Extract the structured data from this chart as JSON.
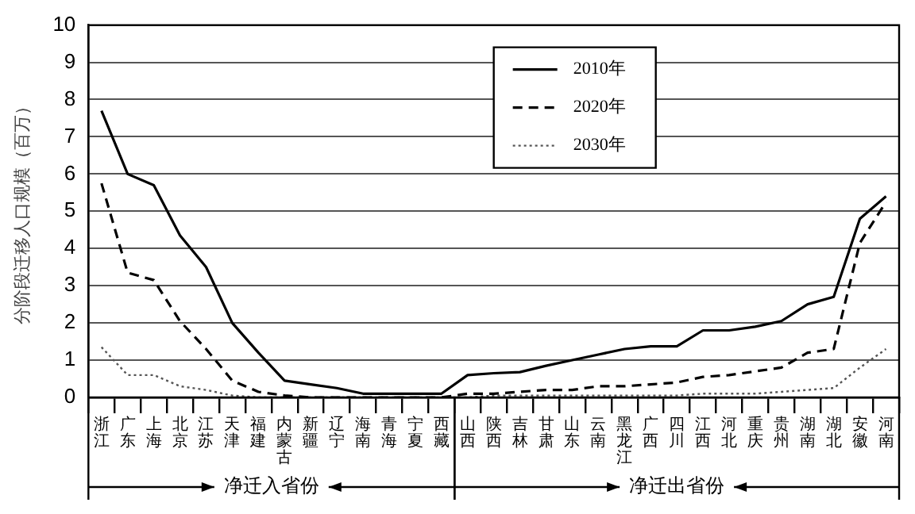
{
  "chart_data": {
    "type": "line",
    "ylabel": "分阶段迁移人口规模（百万）",
    "categories": [
      "浙江",
      "广东",
      "上海",
      "北京",
      "江苏",
      "天津",
      "福建",
      "内蒙古",
      "新疆",
      "辽宁",
      "海南",
      "青海",
      "宁夏",
      "西藏",
      "山西",
      "陕西",
      "吉林",
      "甘肃",
      "山东",
      "云南",
      "黑龙江",
      "广西",
      "四川",
      "江西",
      "河北",
      "重庆",
      "贵州",
      "湖南",
      "湖北",
      "安徽",
      "河南"
    ],
    "series": [
      {
        "name": "2010年",
        "color": "#000000",
        "line_style": "solid",
        "values": [
          7.7,
          6.0,
          5.7,
          4.35,
          3.5,
          2.0,
          1.2,
          0.45,
          0.35,
          0.25,
          0.1,
          0.1,
          0.1,
          0.1,
          0.6,
          0.65,
          0.68,
          0.85,
          1.0,
          1.15,
          1.3,
          1.37,
          1.37,
          1.8,
          1.8,
          1.9,
          2.05,
          2.5,
          2.7,
          4.8,
          5.4
        ]
      },
      {
        "name": "2020年",
        "color": "#000000",
        "line_style": "dashed",
        "values": [
          5.75,
          3.35,
          3.15,
          2.05,
          1.3,
          0.45,
          0.15,
          0.05,
          0,
          0,
          0,
          0,
          0,
          0,
          0.1,
          0.1,
          0.15,
          0.2,
          0.2,
          0.3,
          0.3,
          0.35,
          0.4,
          0.55,
          0.6,
          0.7,
          0.8,
          1.2,
          1.3,
          4.15,
          5.25
        ]
      },
      {
        "name": "2030年",
        "color": "#555555",
        "line_style": "dotted",
        "values": [
          1.35,
          0.6,
          0.6,
          0.3,
          0.2,
          0.05,
          0,
          0,
          0,
          0,
          0,
          0,
          0,
          0,
          0,
          0.05,
          0.05,
          0.05,
          0.05,
          0.05,
          0.05,
          0.05,
          0.05,
          0.1,
          0.1,
          0.1,
          0.15,
          0.2,
          0.25,
          0.8,
          1.3
        ]
      }
    ],
    "ylim": [
      0,
      10
    ],
    "yticks": [
      0,
      1,
      2,
      3,
      4,
      5,
      6,
      7,
      8,
      9,
      10
    ],
    "grid": "y",
    "legend": "top",
    "marker": "none",
    "annotations": [
      "净迁入省份",
      "净迁出省份"
    ]
  }
}
